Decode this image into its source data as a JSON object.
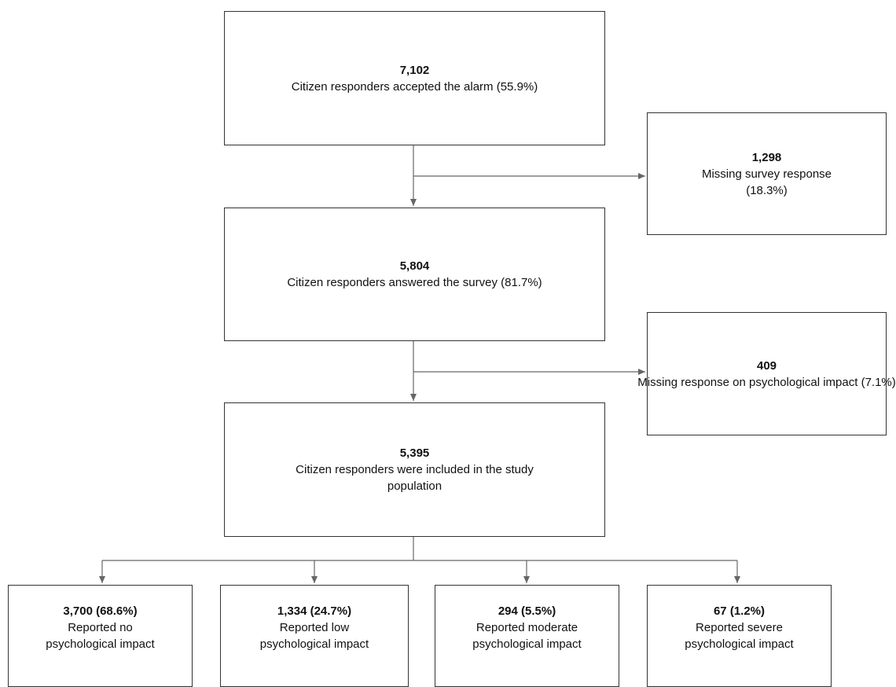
{
  "flowchart": {
    "accepted": {
      "count": "7,102",
      "text": "Citizen responders accepted the alarm (55.9%)"
    },
    "missing_survey": {
      "count": "1,298",
      "text": "Missing survey response\n(18.3%)"
    },
    "answered": {
      "count": "5,804",
      "text": "Citizen responders answered the survey (81.7%)"
    },
    "missing_psych": {
      "count": "409",
      "text": "Missing response on psychological\nimpact (7.1%)"
    },
    "included": {
      "count": "5,395",
      "text": "Citizen responders were included in the study\npopulation"
    },
    "outcomes": [
      {
        "count": "3,700 (68.6%)",
        "text": "Reported no\npsychological impact"
      },
      {
        "count": "1,334 (24.7%)",
        "text": "Reported low\npsychological impact"
      },
      {
        "count": "294 (5.5%)",
        "text": "Reported moderate\npsychological impact"
      },
      {
        "count": "67 (1.2%)",
        "text": "Reported severe\npsychological impact"
      }
    ]
  },
  "colors": {
    "line": "#666666",
    "border": "#333333"
  }
}
